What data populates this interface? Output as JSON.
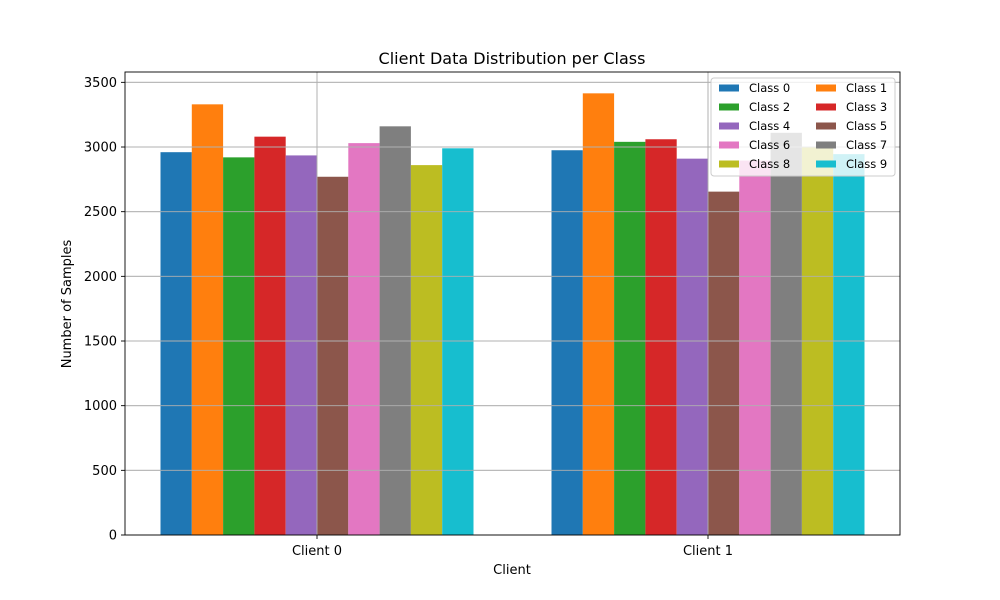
{
  "chart_data": {
    "type": "bar",
    "title": "Client Data Distribution per Class",
    "xlabel": "Client",
    "ylabel": "Number of Samples",
    "categories": [
      "Client 0",
      "Client 1"
    ],
    "ylim": [
      0,
      3580
    ],
    "yticks": [
      0,
      500,
      1000,
      1500,
      2000,
      2500,
      3000,
      3500
    ],
    "grid": true,
    "legend_position": "top-right",
    "legend_columns": 2,
    "series": [
      {
        "name": "Class 0",
        "color": "#1f77b4",
        "values": [
          2960,
          2975
        ]
      },
      {
        "name": "Class 1",
        "color": "#ff7f0e",
        "values": [
          3330,
          3415
        ]
      },
      {
        "name": "Class 2",
        "color": "#2ca02c",
        "values": [
          2920,
          3040
        ]
      },
      {
        "name": "Class 3",
        "color": "#d62728",
        "values": [
          3080,
          3060
        ]
      },
      {
        "name": "Class 4",
        "color": "#9467bd",
        "values": [
          2935,
          2910
        ]
      },
      {
        "name": "Class 5",
        "color": "#8c564b",
        "values": [
          2770,
          2655
        ]
      },
      {
        "name": "Class 6",
        "color": "#e377c2",
        "values": [
          3030,
          2895
        ]
      },
      {
        "name": "Class 7",
        "color": "#7f7f7f",
        "values": [
          3160,
          3110
        ]
      },
      {
        "name": "Class 8",
        "color": "#bcbd22",
        "values": [
          2860,
          3000
        ]
      },
      {
        "name": "Class 9",
        "color": "#17becf",
        "values": [
          2990,
          2945
        ]
      }
    ]
  }
}
